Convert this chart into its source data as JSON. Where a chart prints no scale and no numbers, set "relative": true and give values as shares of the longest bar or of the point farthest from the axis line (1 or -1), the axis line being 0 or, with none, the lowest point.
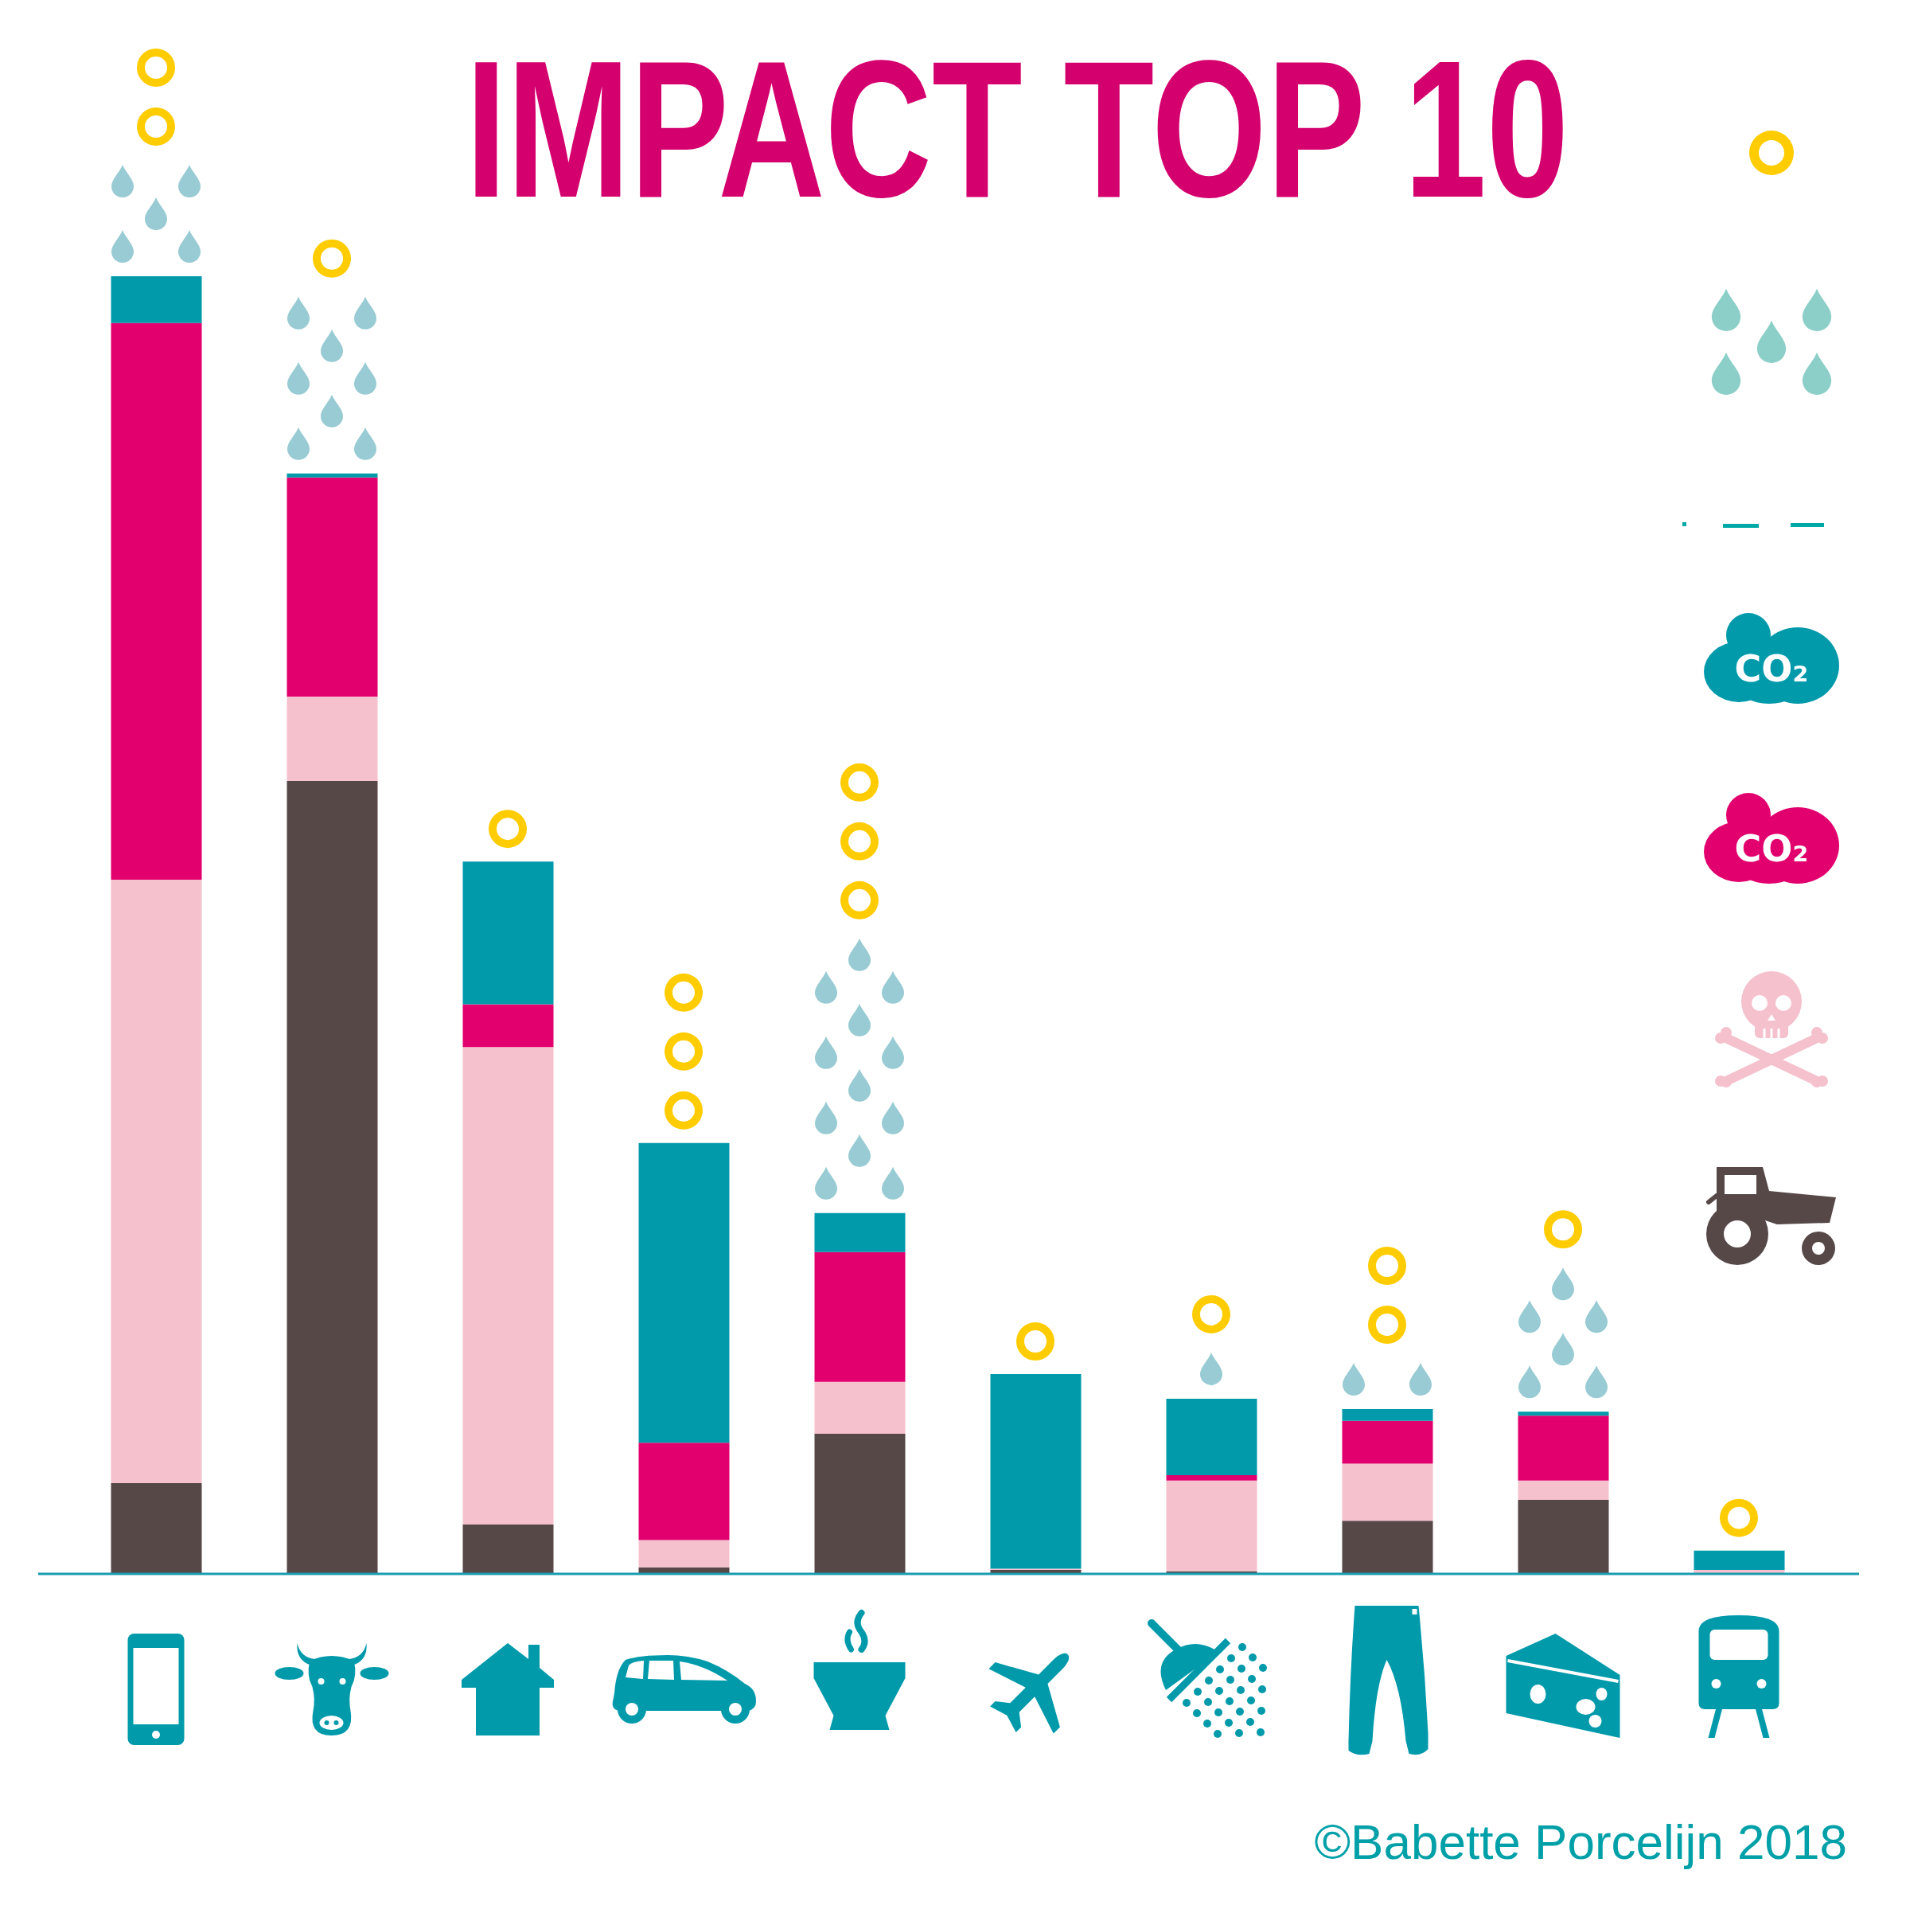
{
  "chart_data": {
    "type": "bar",
    "title": "IMPACT TOP 10",
    "annotations": [
      "©Babette Porcelijn 2018"
    ],
    "categories": [
      null,
      null,
      null,
      null,
      null,
      null,
      null,
      null,
      null,
      null
    ],
    "relative": true,
    "stacked": true,
    "legend": "right",
    "series": [
      {
        "color": "#574848",
        "values": [
          0.07,
          0.611,
          0.038,
          0.005,
          0.108,
          0.003,
          0.002,
          0.041,
          0.057,
          0
        ]
      },
      {
        "color": "#f4c1cd",
        "values": [
          0.465,
          0.065,
          0.368,
          0.021,
          0.04,
          0.001,
          0.07,
          0.044,
          0.015,
          0.003
        ]
      },
      {
        "name": "CO₂",
        "color": "#e2006e",
        "values": [
          0.429,
          0.169,
          0.033,
          0.075,
          0.1,
          0,
          0.004,
          0.033,
          0.05,
          0
        ]
      },
      {
        "name": "CO₂",
        "color": "#009aab",
        "values": [
          0.036,
          0.003,
          0.11,
          0.231,
          0.03,
          0.15,
          0.059,
          0.009,
          0.003,
          0.015
        ]
      }
    ]
  }
}
